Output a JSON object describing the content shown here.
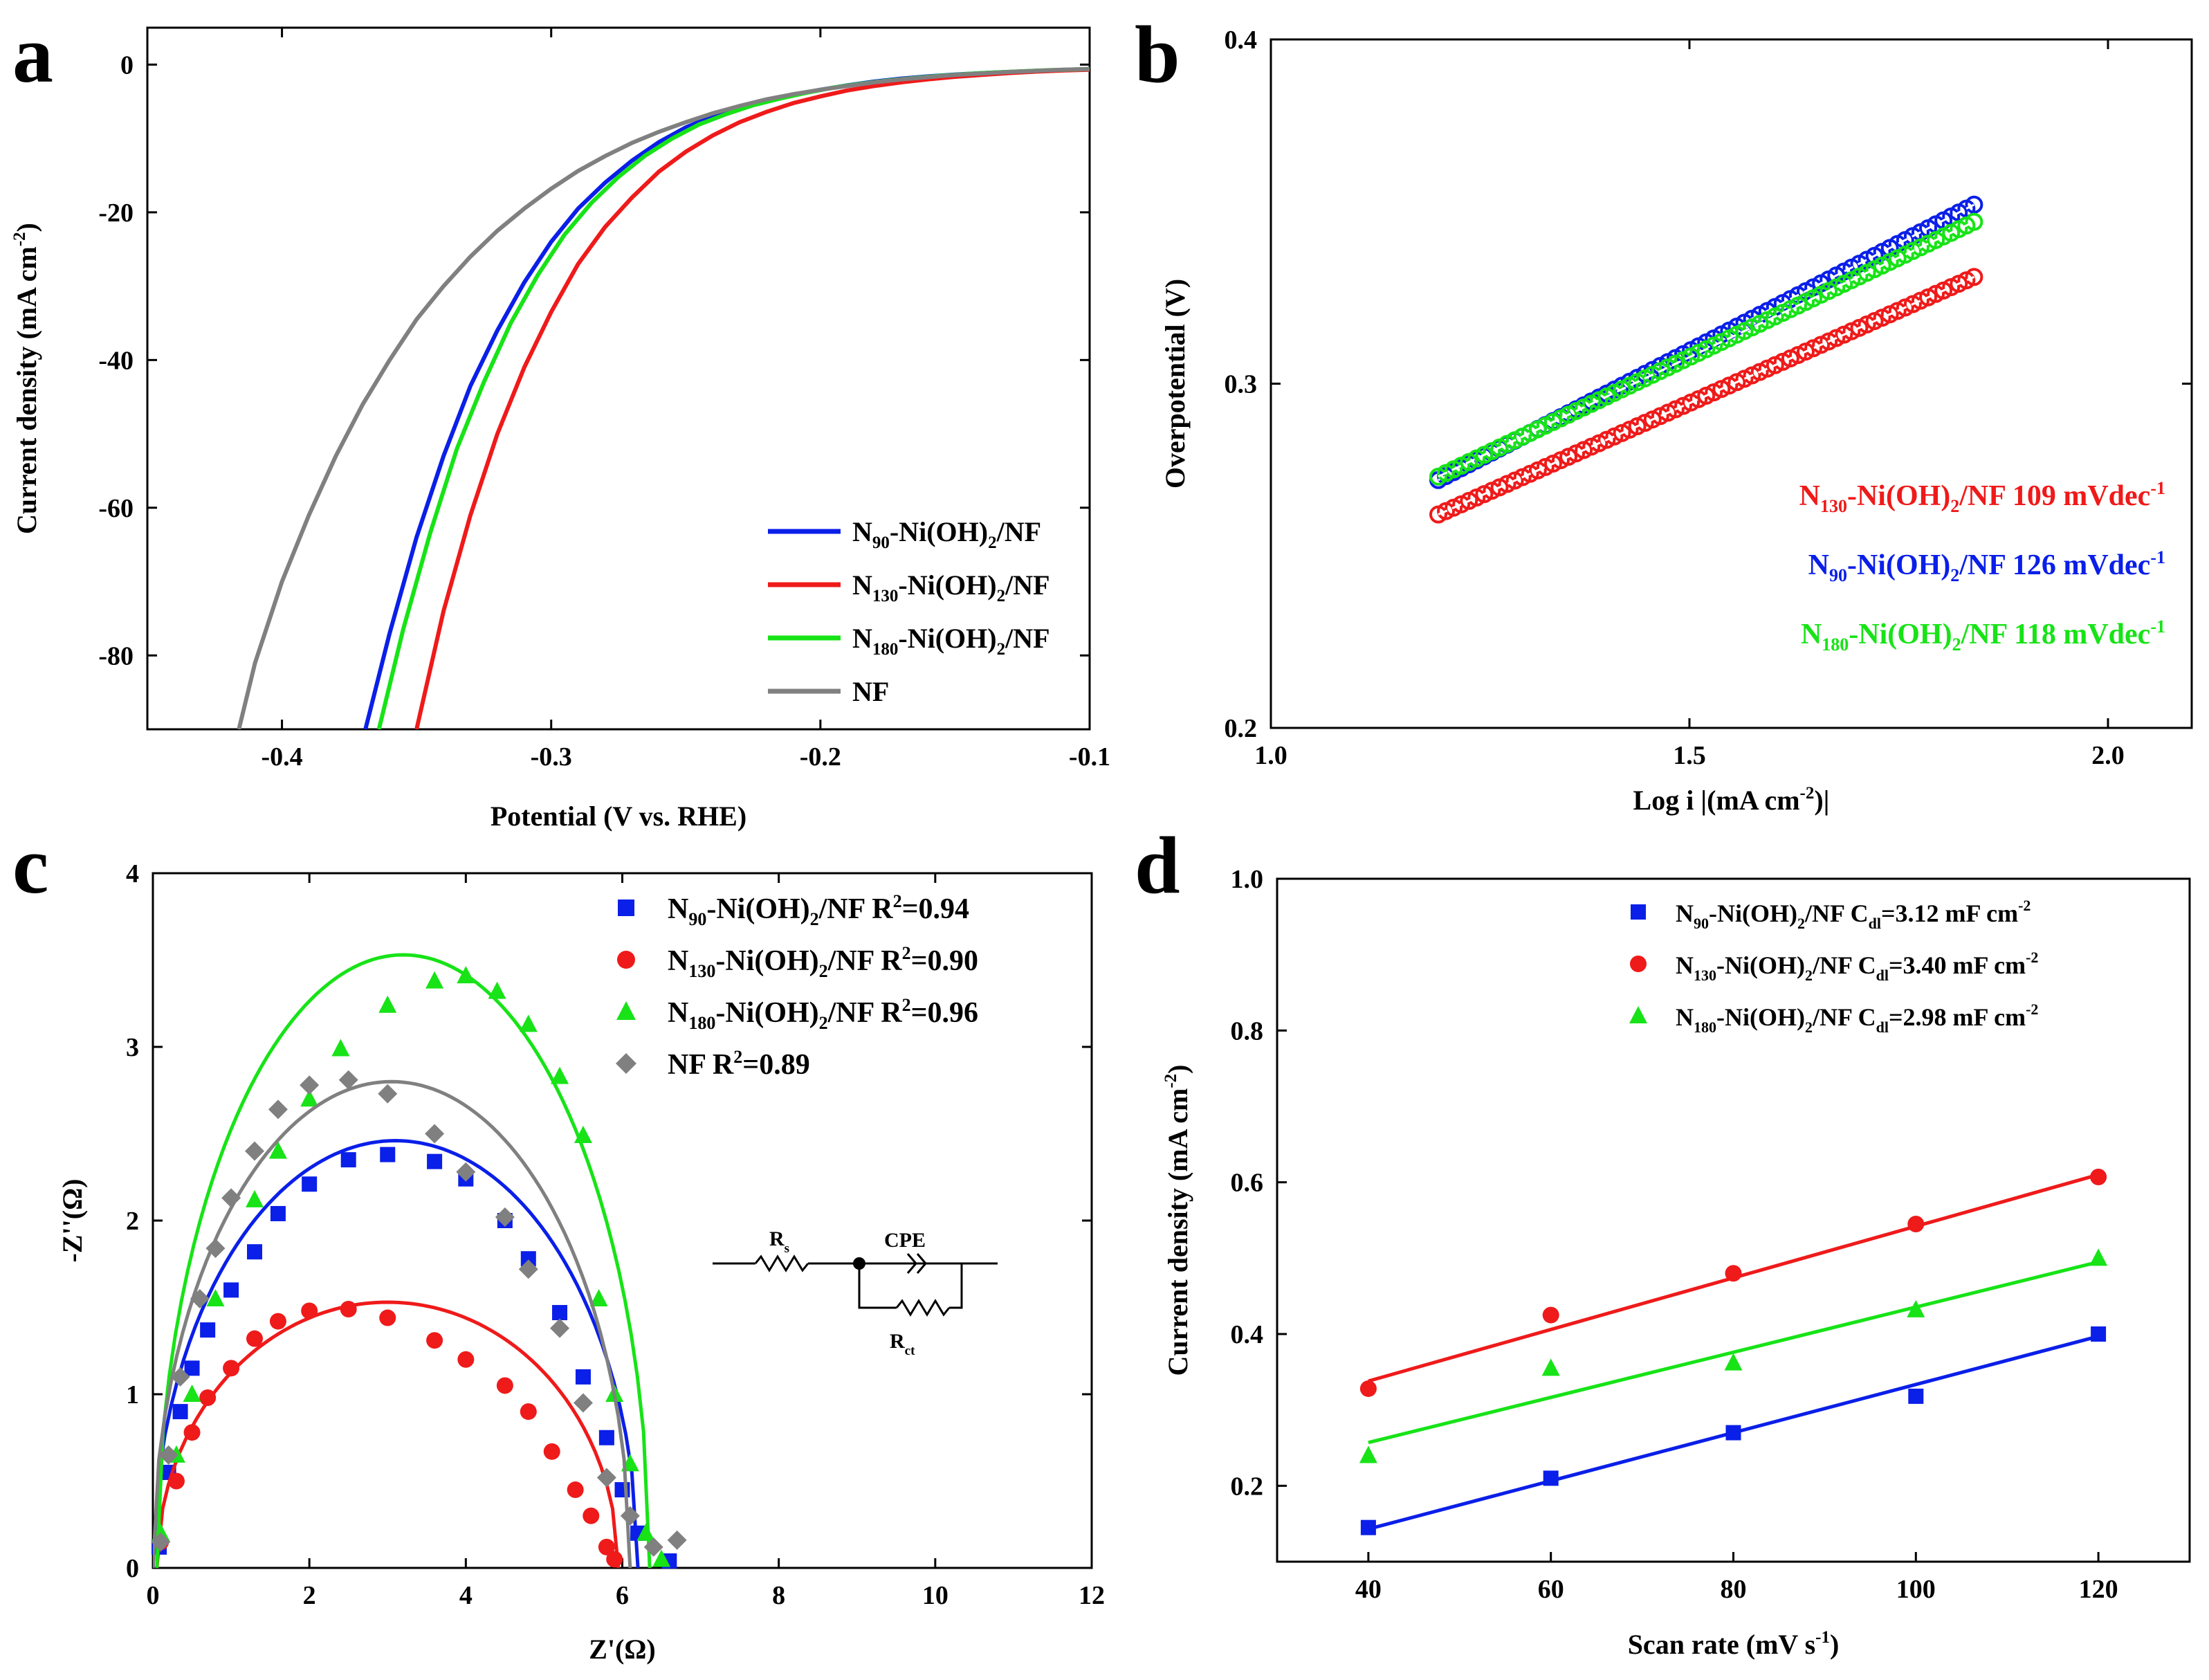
{
  "chart_data": [
    {
      "panel": "a",
      "type": "line",
      "xlabel": "Potential (V vs. RHE)",
      "ylabel": "Current density (mA cm-2)",
      "ylabel_parts": {
        "main": "Current density (mA cm",
        "sup": "-2",
        "end": ")"
      },
      "xlim": [
        -0.45,
        -0.1
      ],
      "ylim": [
        -90,
        5
      ],
      "xticks": [
        -0.4,
        -0.3,
        -0.2,
        -0.1
      ],
      "xtick_labels": [
        "-0.4",
        "-0.3",
        "-0.2",
        "-0.1"
      ],
      "yticks": [
        0,
        -20,
        -40,
        -60,
        -80
      ],
      "ytick_labels": [
        "0",
        "-20",
        "-40",
        "-60",
        "-80"
      ],
      "series": [
        {
          "name": "N90-Ni(OH)2/NF",
          "label": {
            "a": "N",
            "b": "90",
            "c": "-Ni(OH)",
            "d": "2",
            "e": "/NF"
          },
          "color": "#0a1fe8",
          "x": [
            -0.369,
            -0.36,
            -0.35,
            -0.34,
            -0.33,
            -0.32,
            -0.31,
            -0.3,
            -0.29,
            -0.28,
            -0.27,
            -0.26,
            -0.25,
            -0.24,
            -0.23,
            -0.22,
            -0.21,
            -0.2,
            -0.19,
            -0.18,
            -0.17,
            -0.16,
            -0.15,
            -0.14,
            -0.13,
            -0.12,
            -0.11,
            -0.1
          ],
          "y": [
            -90,
            -77,
            -64,
            -53,
            -43.5,
            -36,
            -29.5,
            -24,
            -19.5,
            -16,
            -13,
            -10.5,
            -8.5,
            -7,
            -5.8,
            -4.9,
            -4.1,
            -3.4,
            -2.8,
            -2.3,
            -1.9,
            -1.6,
            -1.35,
            -1.15,
            -1.0,
            -0.85,
            -0.75,
            -0.65
          ]
        },
        {
          "name": "N130-Ni(OH)2/NF",
          "label": {
            "a": "N",
            "b": "130",
            "c": "-Ni(OH)",
            "d": "2",
            "e": "/NF"
          },
          "color": "#ef1a1a",
          "x": [
            -0.35,
            -0.34,
            -0.33,
            -0.32,
            -0.31,
            -0.3,
            -0.29,
            -0.28,
            -0.27,
            -0.26,
            -0.25,
            -0.24,
            -0.23,
            -0.22,
            -0.21,
            -0.2,
            -0.19,
            -0.18,
            -0.17,
            -0.16,
            -0.15,
            -0.14,
            -0.13,
            -0.12,
            -0.11,
            -0.1
          ],
          "y": [
            -90,
            -74,
            -61,
            -50,
            -41,
            -33.5,
            -27,
            -22,
            -18,
            -14.5,
            -11.8,
            -9.6,
            -7.8,
            -6.4,
            -5.2,
            -4.3,
            -3.5,
            -2.9,
            -2.4,
            -2.0,
            -1.65,
            -1.4,
            -1.15,
            -0.95,
            -0.8,
            -0.7
          ]
        },
        {
          "name": "N180-Ni(OH)2/NF",
          "label": {
            "a": "N",
            "b": "180",
            "c": "-Ni(OH)",
            "d": "2",
            "e": "/NF"
          },
          "color": "#17e317",
          "x": [
            -0.364,
            -0.355,
            -0.345,
            -0.335,
            -0.325,
            -0.315,
            -0.305,
            -0.295,
            -0.285,
            -0.275,
            -0.265,
            -0.255,
            -0.245,
            -0.235,
            -0.225,
            -0.215,
            -0.205,
            -0.195,
            -0.185,
            -0.175,
            -0.165,
            -0.155,
            -0.145,
            -0.135,
            -0.125,
            -0.115,
            -0.1
          ],
          "y": [
            -90,
            -76.5,
            -63.5,
            -52,
            -43,
            -35,
            -28.5,
            -23,
            -18.7,
            -15.2,
            -12.3,
            -10,
            -8.1,
            -6.7,
            -5.5,
            -4.6,
            -3.8,
            -3.1,
            -2.6,
            -2.15,
            -1.8,
            -1.5,
            -1.25,
            -1.05,
            -0.9,
            -0.75,
            -0.6
          ]
        },
        {
          "name": "NF",
          "label": {
            "a": "NF",
            "b": "",
            "c": "",
            "d": "",
            "e": ""
          },
          "color": "#808080",
          "x": [
            -0.416,
            -0.41,
            -0.4,
            -0.39,
            -0.38,
            -0.37,
            -0.36,
            -0.35,
            -0.34,
            -0.33,
            -0.32,
            -0.31,
            -0.3,
            -0.29,
            -0.28,
            -0.27,
            -0.26,
            -0.25,
            -0.24,
            -0.23,
            -0.22,
            -0.21,
            -0.2,
            -0.19,
            -0.18,
            -0.17,
            -0.16,
            -0.15,
            -0.14,
            -0.13,
            -0.12,
            -0.11,
            -0.1
          ],
          "y": [
            -90,
            -81,
            -70,
            -61,
            -53,
            -46,
            -40,
            -34.5,
            -30,
            -26,
            -22.5,
            -19.5,
            -16.8,
            -14.4,
            -12.4,
            -10.6,
            -9.1,
            -7.8,
            -6.6,
            -5.6,
            -4.7,
            -4.0,
            -3.4,
            -2.9,
            -2.4,
            -2.0,
            -1.7,
            -1.4,
            -1.2,
            -1.0,
            -0.85,
            -0.7,
            -0.6
          ]
        }
      ]
    },
    {
      "panel": "b",
      "type": "line",
      "xlabel": "Log i |(mA cm-2)|",
      "xlabel_parts": {
        "main": "Log i |(mA cm",
        "sup": "-2",
        "end": ")|"
      },
      "ylabel": "Overpotential (V)",
      "xlim": [
        1.0,
        2.1
      ],
      "ylim": [
        0.2,
        0.4
      ],
      "xticks": [
        1.0,
        1.5,
        2.0
      ],
      "xtick_labels": [
        "1.0",
        "1.5",
        "2.0"
      ],
      "yticks": [
        0.2,
        0.3,
        0.4
      ],
      "ytick_labels": [
        "0.2",
        "0.3",
        "0.4"
      ],
      "series": [
        {
          "name": "N90-Ni(OH)2/NF",
          "color": "#0a1fe8",
          "x": [
            1.2,
            1.84
          ],
          "y": [
            0.272,
            0.352
          ]
        },
        {
          "name": "N130-Ni(OH)2/NF",
          "color": "#ef1a1a",
          "x": [
            1.2,
            1.84
          ],
          "y": [
            0.262,
            0.331
          ]
        },
        {
          "name": "N180-Ni(OH)2/NF",
          "color": "#17e317",
          "x": [
            1.2,
            1.84
          ],
          "y": [
            0.273,
            0.347
          ]
        }
      ],
      "annotations": [
        {
          "a": "N",
          "b": "130",
          "c": "-Ni(OH)",
          "d": "2",
          "e": "/NF 109 mVdec",
          "f": "-1",
          "color": "#ef1a1a"
        },
        {
          "a": "N",
          "b": "90",
          "c": "-Ni(OH)",
          "d": "2",
          "e": "/NF 126 mVdec",
          "f": "-1",
          "color": "#0a1fe8"
        },
        {
          "a": "N",
          "b": "180",
          "c": "-Ni(OH)",
          "d": "2",
          "e": "/NF 118 mVdec",
          "f": "-1",
          "color": "#17e317"
        }
      ]
    },
    {
      "panel": "c",
      "type": "scatter",
      "xlabel": "Z'(Ω)",
      "ylabel": "-Z''(Ω)",
      "xlim": [
        0,
        12
      ],
      "ylim": [
        0,
        4
      ],
      "xticks": [
        0,
        2,
        4,
        6,
        8,
        10,
        12
      ],
      "xtick_labels": [
        "0",
        "2",
        "4",
        "6",
        "8",
        "10",
        "12"
      ],
      "yticks": [
        0,
        1,
        2,
        3,
        4
      ],
      "ytick_labels": [
        "0",
        "1",
        "2",
        "3",
        "4"
      ],
      "series": [
        {
          "name": "N90-Ni(OH)2/NF",
          "label": {
            "a": "N",
            "b": "90",
            "c": "-Ni(OH)",
            "d": "2",
            "e": "/NF R",
            "f": "2",
            "g": "=0.94"
          },
          "color": "#0a1fe8",
          "marker": "square",
          "x": [
            0.08,
            0.2,
            0.35,
            0.5,
            0.7,
            1.0,
            1.3,
            1.6,
            2.0,
            2.5,
            3.0,
            3.6,
            4.0,
            4.5,
            4.8,
            5.2,
            5.5,
            5.8,
            6.0,
            6.2,
            6.6
          ],
          "y": [
            0.12,
            0.55,
            0.9,
            1.15,
            1.37,
            1.6,
            1.82,
            2.04,
            2.21,
            2.35,
            2.38,
            2.34,
            2.24,
            2.0,
            1.78,
            1.47,
            1.1,
            0.75,
            0.45,
            0.2,
            0.04
          ],
          "fit": {
            "cx": 3.1,
            "r": 3.1,
            "peak": 2.46
          }
        },
        {
          "name": "N130-Ni(OH)2/NF",
          "label": {
            "a": "N",
            "b": "130",
            "c": "-Ni(OH)",
            "d": "2",
            "e": "/NF R",
            "f": "2",
            "g": "=0.90"
          },
          "color": "#ef1a1a",
          "marker": "circle",
          "x": [
            0.1,
            0.3,
            0.5,
            0.7,
            1.0,
            1.3,
            1.6,
            2.0,
            2.5,
            3.0,
            3.6,
            4.0,
            4.5,
            4.8,
            5.1,
            5.4,
            5.6,
            5.8,
            5.9
          ],
          "y": [
            0.15,
            0.5,
            0.78,
            0.98,
            1.15,
            1.32,
            1.42,
            1.48,
            1.49,
            1.44,
            1.31,
            1.2,
            1.05,
            0.9,
            0.67,
            0.45,
            0.3,
            0.12,
            0.05
          ],
          "fit": {
            "cx": 3.0,
            "r": 2.95,
            "peak": 1.53
          }
        },
        {
          "name": "N180-Ni(OH)2/NF",
          "label": {
            "a": "N",
            "b": "180",
            "c": "-Ni(OH)",
            "d": "2",
            "e": "/NF R",
            "f": "2",
            "g": "=0.96"
          },
          "color": "#17e317",
          "marker": "triangle",
          "x": [
            0.1,
            0.3,
            0.5,
            0.8,
            1.3,
            1.6,
            2.0,
            2.4,
            3.0,
            3.6,
            4.0,
            4.4,
            4.8,
            5.2,
            5.5,
            5.7,
            5.9,
            6.1,
            6.3,
            6.5
          ],
          "y": [
            0.2,
            0.65,
            1.0,
            1.55,
            2.12,
            2.4,
            2.7,
            2.99,
            3.24,
            3.38,
            3.41,
            3.32,
            3.13,
            2.83,
            2.49,
            1.55,
            1.0,
            0.6,
            0.2,
            0.05
          ],
          "fit": {
            "cx": 3.2,
            "r": 3.15,
            "peak": 3.53
          }
        },
        {
          "name": "NF",
          "label": {
            "a": "NF R",
            "b": "",
            "c": "",
            "d": "",
            "e": "",
            "f": "2",
            "g": "=0.89"
          },
          "color": "#808080",
          "marker": "diamond",
          "x": [
            0.1,
            0.2,
            0.35,
            0.6,
            0.8,
            1.0,
            1.3,
            1.6,
            2.0,
            2.5,
            3.0,
            3.6,
            4.0,
            4.5,
            4.8,
            5.2,
            5.5,
            5.8,
            6.1,
            6.4,
            6.7
          ],
          "y": [
            0.15,
            0.65,
            1.1,
            1.55,
            1.84,
            2.13,
            2.4,
            2.64,
            2.78,
            2.81,
            2.73,
            2.5,
            2.28,
            2.02,
            1.72,
            1.38,
            0.95,
            0.52,
            0.3,
            0.12,
            0.16
          ],
          "fit": {
            "cx": 3.05,
            "r": 3.05,
            "peak": 2.8
          }
        }
      ],
      "circuit": {
        "rs": "R",
        "rs_sub": "s",
        "cpe": "CPE",
        "rct": "R",
        "rct_sub": "ct"
      }
    },
    {
      "panel": "d",
      "type": "scatter",
      "xlabel": "Scan rate (mV s-1)",
      "xlabel_parts": {
        "main": "Scan rate (mV s",
        "sup": "-1",
        "end": ")"
      },
      "ylabel": "Current density (mA cm-2)",
      "ylabel_parts": {
        "main": "Current density (mA cm",
        "sup": "-2",
        "end": ")"
      },
      "xlim": [
        30,
        130
      ],
      "ylim": [
        0.1,
        1.0
      ],
      "xticks": [
        40,
        60,
        80,
        100,
        120
      ],
      "xtick_labels": [
        "40",
        "60",
        "80",
        "100",
        "120"
      ],
      "yticks": [
        0.2,
        0.4,
        0.6,
        0.8,
        1.0
      ],
      "ytick_labels": [
        "0.2",
        "0.4",
        "0.6",
        "0.8",
        "1.0"
      ],
      "series": [
        {
          "name": "N90-Ni(OH)2/NF",
          "label": {
            "a": "N",
            "b": "90",
            "c": "-Ni(OH)",
            "d": "2",
            "e": "/NF C",
            "f": "dl",
            "g": "=3.12 mF cm",
            "h": "-2"
          },
          "color": "#0a1fe8",
          "marker": "square",
          "x": [
            40,
            60,
            80,
            100,
            120
          ],
          "y": [
            0.145,
            0.21,
            0.27,
            0.318,
            0.4
          ],
          "fit": [
            0.143,
            0.397
          ]
        },
        {
          "name": "N130-Ni(OH)2/NF",
          "label": {
            "a": "N",
            "b": "130",
            "c": "-Ni(OH)",
            "d": "2",
            "e": "/NF C",
            "f": "dl",
            "g": "=3.40 mF cm",
            "h": "-2"
          },
          "color": "#ef1a1a",
          "marker": "circle",
          "x": [
            40,
            60,
            80,
            100,
            120
          ],
          "y": [
            0.328,
            0.425,
            0.48,
            0.545,
            0.607
          ],
          "fit": [
            0.338,
            0.61
          ]
        },
        {
          "name": "N180-Ni(OH)2/NF",
          "label": {
            "a": "N",
            "b": "180",
            "c": "-Ni(OH)",
            "d": "2",
            "e": "/NF C",
            "f": "dl",
            "g": "=2.98 mF cm",
            "h": "-2"
          },
          "color": "#17e317",
          "marker": "triangle",
          "x": [
            40,
            60,
            80,
            100,
            120
          ],
          "y": [
            0.24,
            0.355,
            0.362,
            0.432,
            0.5
          ],
          "fit": [
            0.257,
            0.495
          ]
        }
      ]
    }
  ]
}
